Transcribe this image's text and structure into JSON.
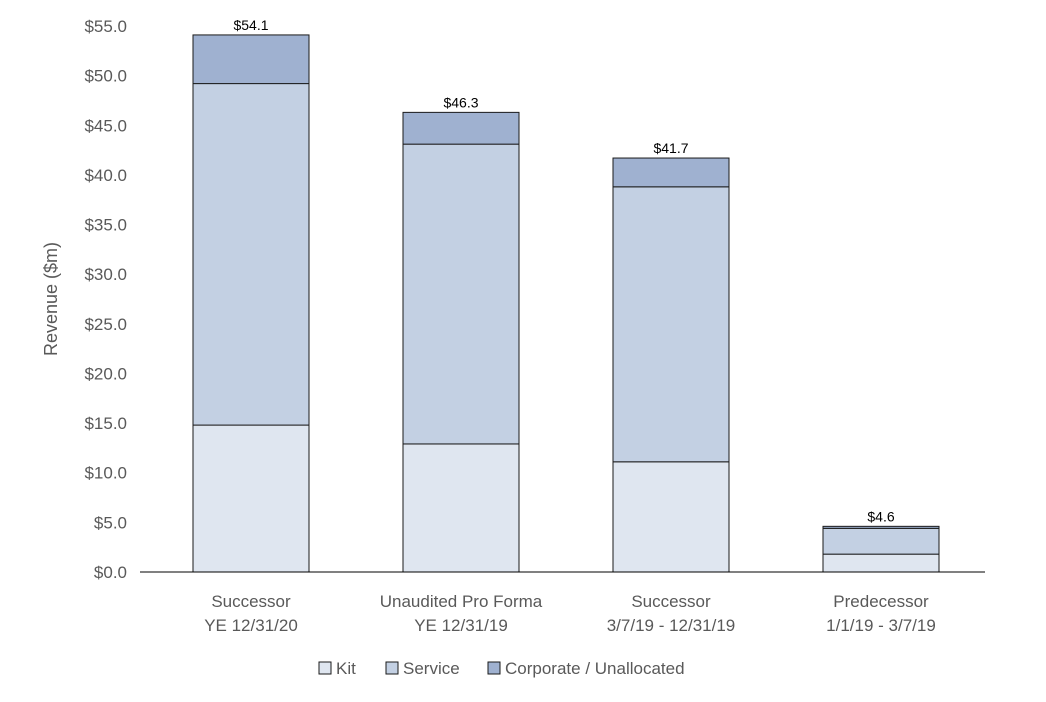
{
  "chart_data": {
    "type": "bar",
    "stacked": true,
    "title": "",
    "xlabel": "",
    "ylabel": "Revenue ($m)",
    "ylim": [
      0,
      55
    ],
    "y_ticks": [
      "$0.0",
      "$5.0",
      "$10.0",
      "$15.0",
      "$20.0",
      "$25.0",
      "$30.0",
      "$35.0",
      "$40.0",
      "$45.0",
      "$50.0",
      "$55.0"
    ],
    "y_tick_values": [
      0,
      5,
      10,
      15,
      20,
      25,
      30,
      35,
      40,
      45,
      50,
      55
    ],
    "categories": [
      [
        "Successor",
        "YE 12/31/20"
      ],
      [
        "Unaudited Pro Forma",
        "YE 12/31/19"
      ],
      [
        "Successor",
        "3/7/19 - 12/31/19"
      ],
      [
        "Predecessor",
        "1/1/19 - 3/7/19"
      ]
    ],
    "series": [
      {
        "name": "Kit",
        "color": "#dfe6f0",
        "values": [
          14.8,
          12.9,
          11.1,
          1.8
        ]
      },
      {
        "name": "Service",
        "color": "#c3d0e3",
        "values": [
          34.4,
          30.2,
          27.7,
          2.6
        ]
      },
      {
        "name": "Corporate / Unallocated",
        "color": "#9fb1d0",
        "values": [
          4.9,
          3.2,
          2.9,
          0.2
        ]
      }
    ],
    "totals": [
      "$54.1",
      "$46.3",
      "$41.7",
      "$4.6"
    ],
    "total_values": [
      54.1,
      46.3,
      41.7,
      4.6
    ],
    "grid": false,
    "legend_position": "bottom"
  }
}
